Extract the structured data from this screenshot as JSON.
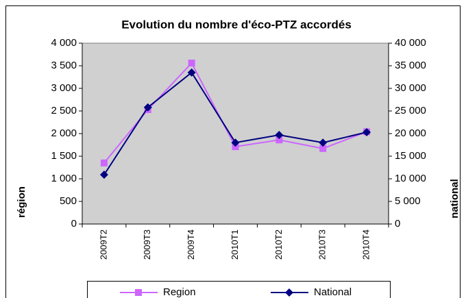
{
  "chart_data": {
    "type": "line",
    "title": "Evolution du nombre d'éco-PTZ accordés",
    "y_label": "région",
    "y2_label": "national",
    "categories": [
      "2009T2",
      "2009T3",
      "2009T4",
      "2010T1",
      "2010T2",
      "2010T3",
      "2010T4"
    ],
    "series": [
      {
        "name": "Region",
        "color": "#cc66ff",
        "marker": "square",
        "values": [
          1350,
          2530,
          3560,
          1710,
          1860,
          1670,
          2040
        ]
      },
      {
        "name": "National",
        "color": "#000080",
        "marker": "diamond",
        "axis": "y2",
        "values": [
          10900,
          25800,
          33500,
          18000,
          19700,
          18000,
          20300
        ]
      }
    ],
    "ylim": [
      0,
      4000
    ],
    "yticks": [
      0,
      500,
      {
        "value": 1000,
        "label": "1 000"
      },
      {
        "value": 1500,
        "label": "1 500"
      },
      {
        "value": 2000,
        "label": "2 000"
      },
      {
        "value": 2500,
        "label": "2 500"
      },
      {
        "value": 3000,
        "label": "3 000"
      },
      {
        "value": 3500,
        "label": "3 500"
      },
      {
        "value": 4000,
        "label": "4 000"
      }
    ],
    "y2lim": [
      0,
      40000
    ],
    "y2ticks": [
      0,
      {
        "value": 5000,
        "label": "5 000"
      },
      {
        "value": 10000,
        "label": "10 000"
      },
      {
        "value": 15000,
        "label": "15 000"
      },
      {
        "value": 20000,
        "label": "20 000"
      },
      {
        "value": 25000,
        "label": "25 000"
      },
      {
        "value": 30000,
        "label": "30 000"
      },
      {
        "value": 35000,
        "label": "35 000"
      },
      {
        "value": 40000,
        "label": "40 000"
      }
    ],
    "grid": false,
    "legend": "bottom",
    "plot_background": "#d0d0d0"
  }
}
